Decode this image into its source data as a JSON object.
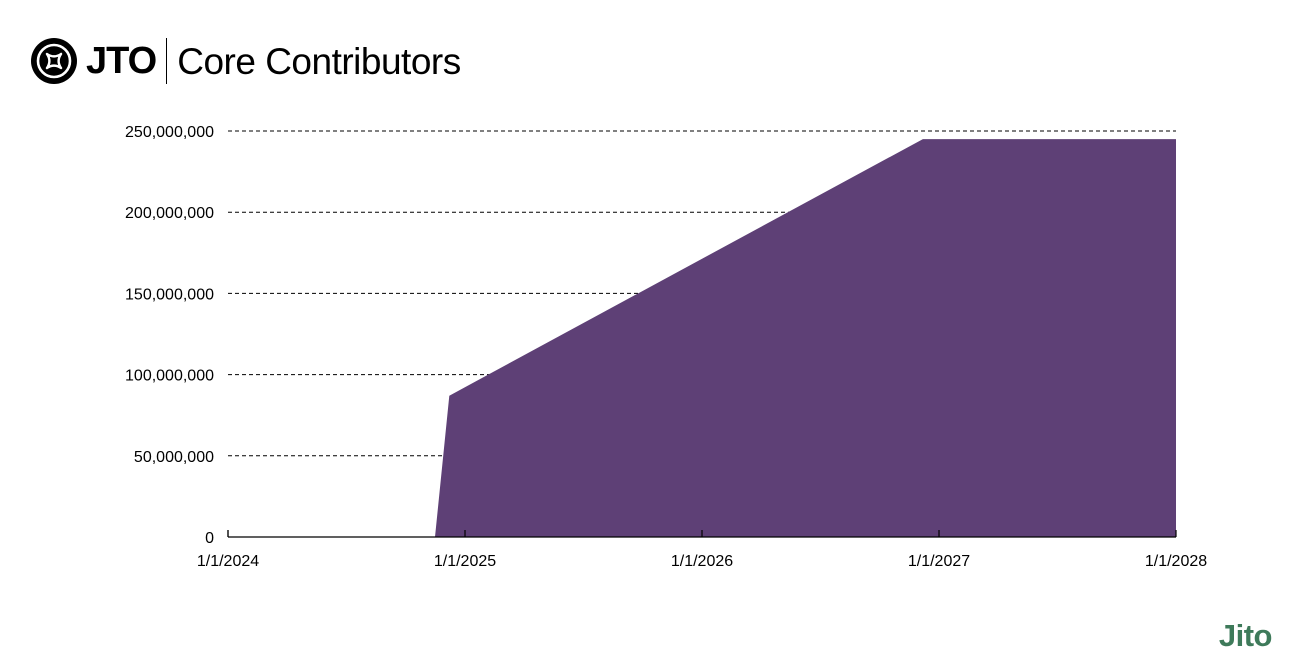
{
  "header": {
    "brand": "JTO",
    "title": "Core Contributors",
    "logo_icon": "jto-star-icon"
  },
  "footer": {
    "logo_text": "Jito",
    "logo_color": "#3E7A5A"
  },
  "chart_data": {
    "type": "area",
    "title": "",
    "xlabel": "",
    "ylabel": "",
    "x_ticks": [
      "1/1/2024",
      "1/1/2025",
      "1/1/2026",
      "1/1/2027",
      "1/1/2028"
    ],
    "y_ticks": [
      "0",
      "50,000,000",
      "100,000,000",
      "150,000,000",
      "200,000,000",
      "250,000,000"
    ],
    "ylim": [
      0,
      250000000
    ],
    "xlim": [
      "2024-01-01",
      "2028-01-01"
    ],
    "grid": "horizontal dashed",
    "fill_color": "#5E4076",
    "series": [
      {
        "x": [
          "2024-01-01",
          "2024-11-15",
          "2024-12-07",
          "2026-12-07",
          "2028-01-01"
        ],
        "values": [
          0,
          0,
          87000000,
          245000000,
          245000000
        ]
      }
    ]
  }
}
